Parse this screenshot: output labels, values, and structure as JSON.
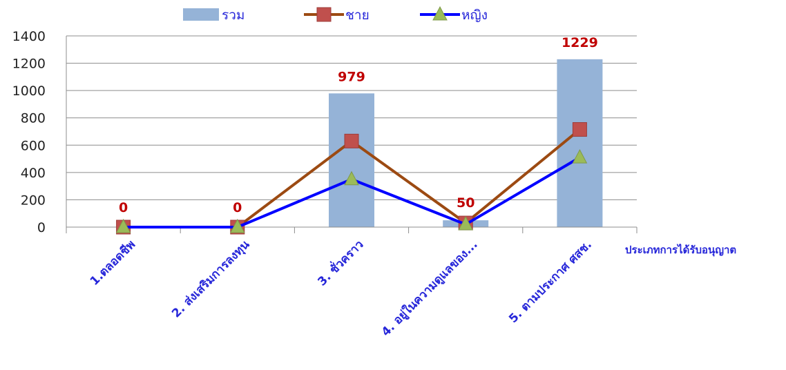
{
  "chart_data": {
    "type": "bar",
    "categories": [
      "1.ตลอดชีพ",
      "2. ส่งเสริมการลงทุน",
      "3. ชั่วคราว",
      "4. อยู่ในความดูแลของ...",
      "5. ตามประกาศ ศสช."
    ],
    "xlabel": "ประเภทการได้รับอนุญาต",
    "ylabel": "",
    "ylim": [
      0,
      1400
    ],
    "yticks": [
      0,
      200,
      400,
      600,
      800,
      1000,
      1200,
      1400
    ],
    "grid": true,
    "legend_position": "top",
    "series": [
      {
        "name": "รวม",
        "type": "bar",
        "color": "#95b3d7",
        "values": [
          0,
          0,
          979,
          50,
          1229
        ],
        "data_labels": [
          "0",
          "0",
          "979",
          "50",
          "1229"
        ]
      },
      {
        "name": "ชาย",
        "type": "line",
        "color": "#9c4a12",
        "marker": "square",
        "marker_color": "#c0504d",
        "values": [
          0,
          0,
          630,
          30,
          715
        ]
      },
      {
        "name": "หญิง",
        "type": "line",
        "color": "#0000ff",
        "marker": "triangle",
        "marker_color": "#9bbb59",
        "values": [
          0,
          0,
          350,
          20,
          510
        ]
      }
    ]
  }
}
